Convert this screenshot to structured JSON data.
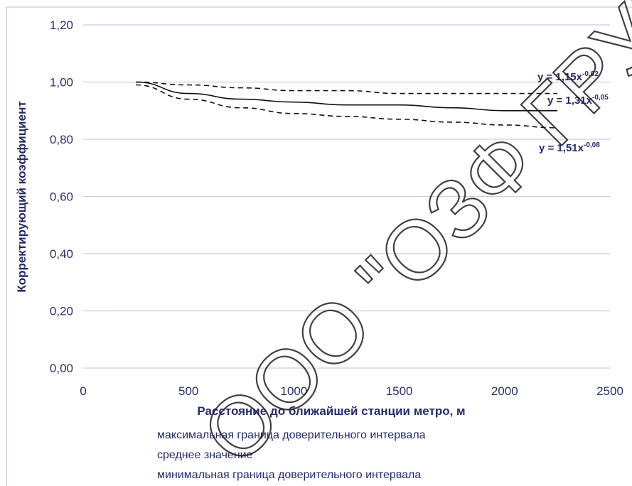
{
  "chart_data": {
    "type": "line",
    "title": "",
    "xlabel": "Расстояние до ближайшей станции метро, м",
    "ylabel": "Корректирующий коэффициент",
    "xlim": [
      0,
      2500
    ],
    "ylim": [
      0,
      1.2
    ],
    "x_ticks": [
      "0",
      "500",
      "1000",
      "1500",
      "2000",
      "2500"
    ],
    "y_ticks": [
      "0,00",
      "0,20",
      "0,40",
      "0,60",
      "0,80",
      "1,00",
      "1,20"
    ],
    "grid": "horizontal",
    "series": [
      {
        "name": "максимальная граница доверительного интервала",
        "style": "dashed",
        "x": [
          250,
          500,
          750,
          1000,
          1250,
          1500,
          1750,
          2000,
          2250
        ],
        "y": [
          1.0,
          0.99,
          0.98,
          0.97,
          0.97,
          0.96,
          0.96,
          0.96,
          0.96
        ],
        "equation": {
          "base": "y = 1,15x",
          "exp": "-0,02"
        }
      },
      {
        "name": "среднее значение",
        "style": "solid",
        "x": [
          250,
          500,
          750,
          1000,
          1250,
          1500,
          1750,
          2000,
          2250
        ],
        "y": [
          1.0,
          0.96,
          0.94,
          0.93,
          0.92,
          0.92,
          0.91,
          0.9,
          0.9
        ],
        "equation": {
          "base": "y = 1,31x",
          "exp": "-0,05"
        }
      },
      {
        "name": "минимальная граница доверительного интервала",
        "style": "dashed",
        "x": [
          250,
          500,
          750,
          1000,
          1250,
          1500,
          1750,
          2000,
          2250
        ],
        "y": [
          0.99,
          0.94,
          0.91,
          0.89,
          0.88,
          0.87,
          0.86,
          0.85,
          0.84
        ],
        "equation": {
          "base": "y = 1,51x",
          "exp": "-0,08"
        }
      }
    ],
    "legend_position": "bottom"
  },
  "watermark": "ООО \"ОЗФ ГРУПП\""
}
